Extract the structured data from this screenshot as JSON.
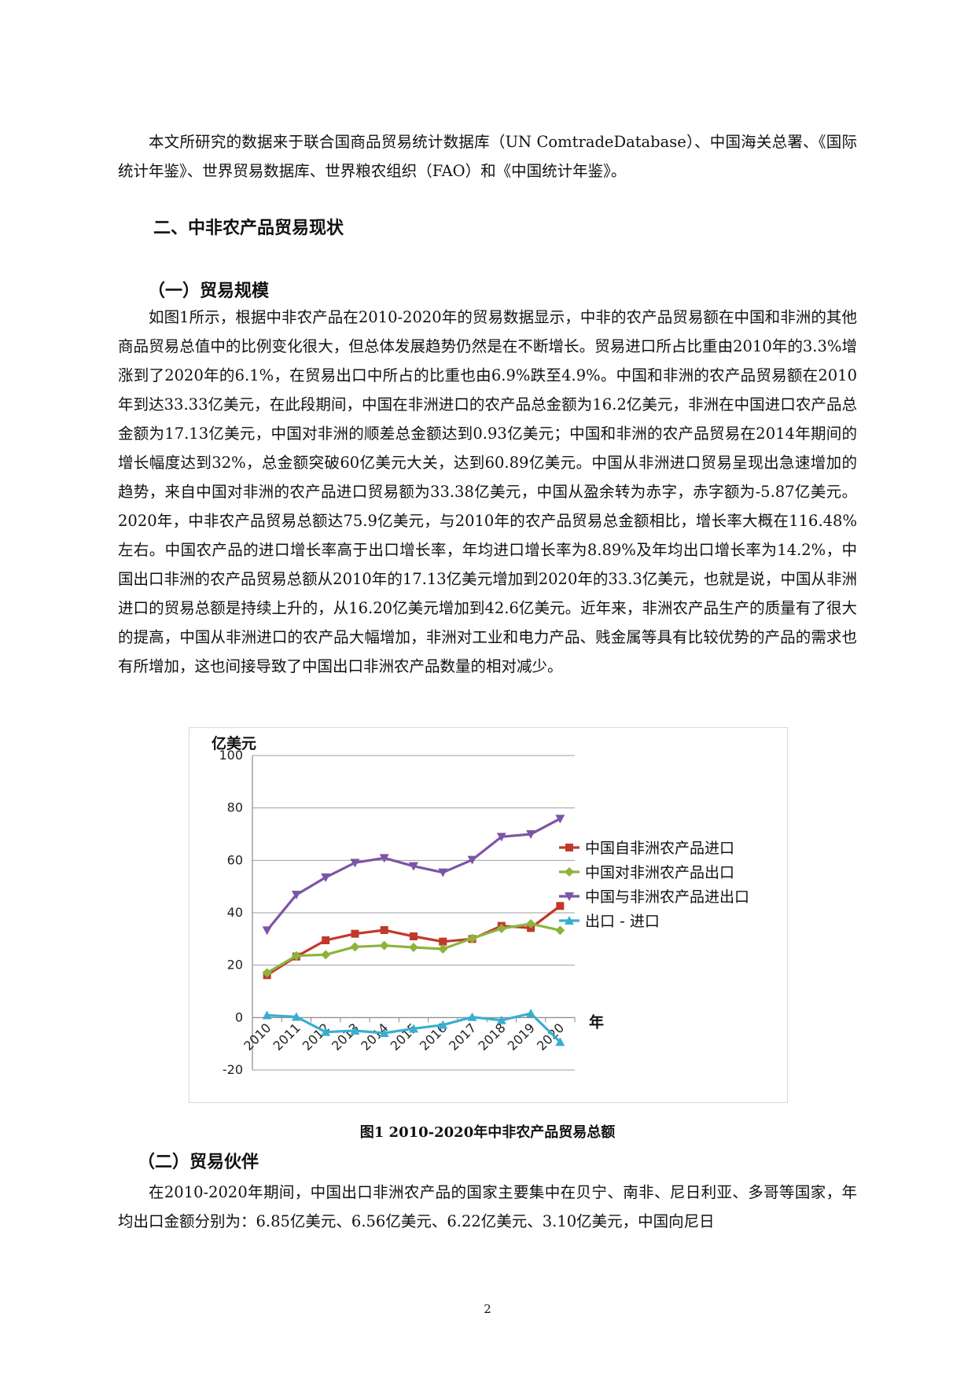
{
  "intro": {
    "text": "本文所研究的数据来于联合国商品贸易统计数据库（UN ComtradeDatabase）、中国海关总署、《国际统计年鉴》、世界贸易数据库、世界粮农组织（FAO）和《中国统计年鉴》。"
  },
  "section": {
    "heading": "二、中非农产品贸易现状",
    "sub1_heading": "（一）贸易规模",
    "sub1_text": "如图1所示，根据中非农产品在2010-2020年的贸易数据显示，中非的农产品贸易额在中国和非洲的其他商品贸易总值中的比例变化很大，但总体发展趋势仍然是在不断增长。贸易进口所占比重由2010年的3.3%增涨到了2020年的6.1%，在贸易出口中所占的比重也由6.9%跌至4.9%。中国和非洲的农产品贸易额在2010年到达33.33亿美元，在此段期间，中国在非洲进口的农产品总金额为16.2亿美元，非洲在中国进口农产品总金额为17.13亿美元，中国对非洲的顺差总金额达到0.93亿美元；中国和非洲的农产品贸易在2014年期间的增长幅度达到32%，总金额突破60亿美元大关，达到60.89亿美元。中国从非洲进口贸易呈现出急速增加的趋势，来自中国对非洲的农产品进口贸易额为33.38亿美元，中国从盈余转为赤字，赤字额为-5.87亿美元。2020年，中非农产品贸易总额达75.9亿美元，与2010年的农产品贸易总金额相比，增长率大概在116.48%左右。中国农产品的进口增长率高于出口增长率，年均进口增长率为8.89%及年均出口增长率为14.2%，中国出口非洲的农产品贸易总额从2010年的17.13亿美元增加到2020年的33.3亿美元，也就是说，中国从非洲进口的贸易总额是持续上升的，从16.20亿美元增加到42.6亿美元。近年来，非洲农产品生产的质量有了很大的提高，中国从非洲进口的农产品大幅增加，非洲对工业和电力产品、贱金属等具有比较优势的产品的需求也有所增加，这也间接导致了中国出口非洲农产品数量的相对减少。",
    "figure_caption": "图1 2010-2020年中非农产品贸易总额",
    "sub2_heading": "（二）贸易伙伴",
    "sub2_text": "在2010-2020年期间，中国出口非洲农产品的国家主要集中在贝宁、南非、尼日利亚、多哥等国家，年均出口金额分别为：6.85亿美元、6.56亿美元、6.22亿美元、3.10亿美元，中国向尼日"
  },
  "page_number": "2",
  "chart_data": {
    "type": "line",
    "ylabel": "亿美元",
    "xlabel": "年",
    "categories": [
      "2010",
      "2011",
      "2012",
      "2013",
      "2014",
      "2015",
      "2016",
      "2017",
      "2018",
      "2019",
      "2020"
    ],
    "ylim": [
      -20,
      100
    ],
    "yticks": [
      "-20",
      "0",
      "20",
      "40",
      "60",
      "80",
      "100"
    ],
    "grid": true,
    "legend_position": "right",
    "series": [
      {
        "name": "中国自非洲农产品进口",
        "color": "#c0392b",
        "marker": "square",
        "values": [
          16.2,
          23.3,
          29.5,
          32.0,
          33.4,
          31.0,
          29.0,
          30.0,
          35.0,
          34.2,
          42.6
        ]
      },
      {
        "name": "中国对非洲农产品出口",
        "color": "#8cb43c",
        "marker": "diamond",
        "values": [
          17.1,
          23.6,
          24.0,
          27.0,
          27.5,
          26.8,
          26.2,
          30.2,
          34.0,
          35.8,
          33.3
        ]
      },
      {
        "name": "中国与非洲农产品进出口",
        "color": "#7b55a6",
        "marker": "triangle-down",
        "values": [
          33.3,
          46.9,
          53.5,
          59.1,
          60.9,
          57.8,
          55.4,
          60.2,
          69.0,
          70.0,
          75.9
        ]
      },
      {
        "name": "出口 - 进口",
        "color": "#3aaed0",
        "marker": "triangle-up",
        "values": [
          0.9,
          0.3,
          -5.5,
          -5.0,
          -5.9,
          -4.2,
          -2.8,
          0.2,
          -1.0,
          1.6,
          -9.3
        ]
      }
    ]
  }
}
